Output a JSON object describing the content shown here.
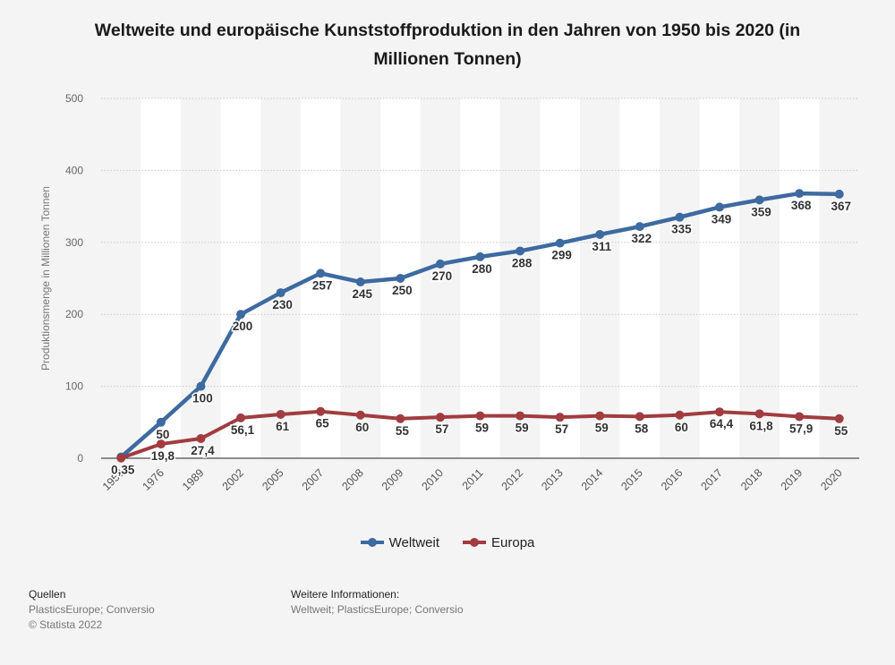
{
  "title": "Weltweite und europäische Kunststoffproduktion in den Jahren von 1950 bis 2020 (in Millionen Tonnen)",
  "chart_data": {
    "type": "line",
    "ylabel": "Produktionsmenge in Millionen Tonnen",
    "xlabel": "",
    "ylim": [
      0,
      500
    ],
    "yticks": [
      "0",
      "100",
      "200",
      "300",
      "400",
      "500"
    ],
    "grid": "horizontal-dotted",
    "legend_position": "bottom-center",
    "categories": [
      "1950",
      "1976",
      "1989",
      "2002",
      "2005",
      "2007",
      "2008",
      "2009",
      "2010",
      "2011",
      "2012",
      "2013",
      "2014",
      "2015",
      "2016",
      "2017",
      "2018",
      "2019",
      "2020"
    ],
    "series": [
      {
        "name": "Weltweit",
        "color": "#3d6aa0",
        "values": [
          1.7,
          50,
          100,
          200,
          230,
          257,
          245,
          250,
          270,
          280,
          288,
          299,
          311,
          322,
          335,
          349,
          359,
          368,
          367
        ],
        "labels": [
          "",
          "50",
          "100",
          "200",
          "230",
          "257",
          "245",
          "250",
          "270",
          "280",
          "288",
          "299",
          "311",
          "322",
          "335",
          "349",
          "359",
          "368",
          "367"
        ]
      },
      {
        "name": "Europa",
        "color": "#a13c40",
        "values": [
          0.35,
          19.8,
          27.4,
          56.1,
          61,
          65,
          60,
          55,
          57,
          59,
          59,
          57,
          59,
          58,
          60,
          64.4,
          61.8,
          57.9,
          55
        ],
        "labels": [
          "0,35",
          "19,8",
          "27,4",
          "56,1",
          "61",
          "65",
          "60",
          "55",
          "57",
          "59",
          "59",
          "57",
          "59",
          "58",
          "60",
          "64,4",
          "61,8",
          "57,9",
          "55"
        ]
      }
    ]
  },
  "legend": {
    "weltweit": "Weltweit",
    "europa": "Europa",
    "weltweit_color": "#3d6aa0",
    "europa_color": "#a13c40"
  },
  "footer": {
    "sources_heading": "Quellen",
    "sources_text": "PlasticsEurope; Conversio",
    "copyright": "© Statista 2022",
    "info_heading": "Weitere Informationen:",
    "info_text": "Weltweit; PlasticsEurope; Conversio"
  }
}
